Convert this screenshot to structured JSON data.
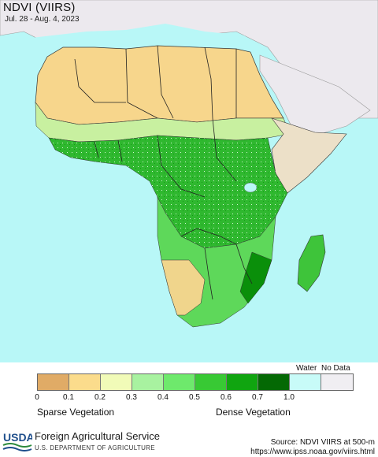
{
  "map": {
    "title": "NDVI (VIIRS)",
    "date_range": "Jul. 28 - Aug. 4, 2023",
    "colors": {
      "ocean": "#b8f7f7",
      "land_other": "#ece9ee",
      "sparse": "#f7d68c",
      "dense": "#0a7a0a"
    }
  },
  "legend": {
    "water_label": "Water",
    "no_data_label": "No Data",
    "ticks": [
      "0",
      "0.1",
      "0.2",
      "0.3",
      "0.4",
      "0.5",
      "0.6",
      "0.7",
      "1.0"
    ],
    "swatches": [
      {
        "class": "0-0.1",
        "color": "#e0ab66"
      },
      {
        "class": "0.1-0.2",
        "color": "#fbdc8c"
      },
      {
        "class": "0.2-0.3",
        "color": "#f1fbb8"
      },
      {
        "class": "0.3-0.4",
        "color": "#a8f2a0"
      },
      {
        "class": "0.4-0.5",
        "color": "#6ee96c"
      },
      {
        "class": "0.5-0.6",
        "color": "#38c934"
      },
      {
        "class": "0.6-0.7",
        "color": "#10a510"
      },
      {
        "class": "0.7-1.0",
        "color": "#046904"
      },
      {
        "class": "water",
        "color": "#c8fbf8"
      },
      {
        "class": "no-data",
        "color": "#f0eef2"
      }
    ],
    "sparse_label": "Sparse Vegetation",
    "dense_label": "Dense Vegetation"
  },
  "footer": {
    "logo_text": "USDA",
    "agency": "Foreign Agricultural Service",
    "department": "U.S. DEPARTMENT OF AGRICULTURE",
    "source": "Source: NDVI VIIRS at 500-m",
    "url": "https://www.ipss.noaa.gov/viirs.html"
  }
}
